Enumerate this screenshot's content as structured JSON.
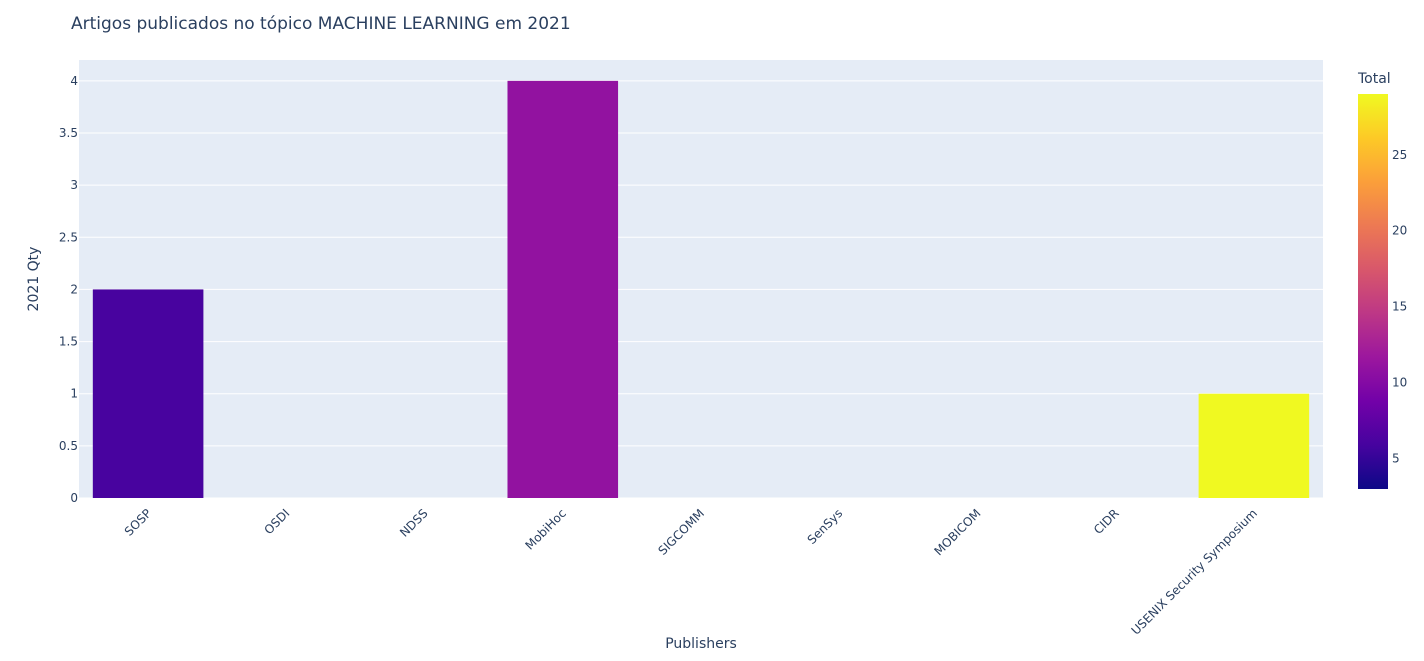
{
  "chart_data": {
    "type": "bar",
    "title": "Artigos publicados no tópico MACHINE LEARNING em 2021",
    "xlabel": "Publishers",
    "ylabel": "2021 Qty",
    "categories": [
      "SOSP",
      "OSDI",
      "NDSS",
      "MobiHoc",
      "SIGCOMM",
      "SenSys",
      "MOBICOM",
      "CIDR",
      "USENIX Security Symposium"
    ],
    "values": [
      2,
      0,
      0,
      4,
      0,
      0,
      0,
      0,
      1
    ],
    "color_values": [
      6,
      3,
      3,
      11,
      3,
      3,
      3,
      3,
      29
    ],
    "ylim": [
      0,
      4.2
    ],
    "yticks": [
      "0",
      "0.5",
      "1",
      "1.5",
      "2",
      "2.5",
      "3",
      "3.5",
      "4"
    ],
    "grid": true,
    "colorbar": {
      "title": "Total",
      "range": [
        3,
        29
      ],
      "ticks": [
        "5",
        "10",
        "15",
        "20",
        "25"
      ],
      "colorscale": [
        "#0d0887",
        "#46039f",
        "#7201a8",
        "#9c179e",
        "#bd3786",
        "#d8576b",
        "#ed7953",
        "#fb9f3a",
        "#fdca26",
        "#f0f921"
      ]
    }
  },
  "style": {
    "plot_bg": "#e5ecf6",
    "grid_color": "#ffffff",
    "text_color": "#2a3f5f"
  }
}
